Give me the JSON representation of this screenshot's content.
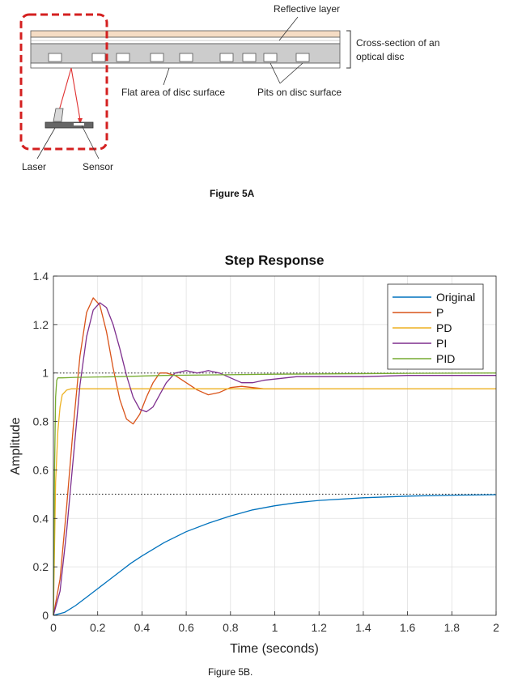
{
  "figure_5a": {
    "labels": {
      "reflective_layer": "Reflective layer",
      "cross_section_line1": "Cross-section of an",
      "cross_section_line2": "optical disc",
      "flat_area": "Flat area of disc surface",
      "pits": "Pits on disc surface",
      "laser": "Laser",
      "sensor": "Sensor"
    },
    "caption": "Figure 5A",
    "colors": {
      "highlight_box": "#d42020",
      "beam": "#e03030",
      "top_layer": "#f5dcc4",
      "mid_layer": "#cccccc"
    }
  },
  "figure_5b": {
    "caption": "Figure 5B."
  },
  "chart_data": {
    "type": "line",
    "title": "Step Response",
    "xlabel": "Time (seconds)",
    "ylabel": "Amplitude",
    "xlim": [
      0,
      2
    ],
    "ylim": [
      0,
      1.4
    ],
    "xticks": [
      "0",
      "0.2",
      "0.4",
      "0.6",
      "0.8",
      "1",
      "1.2",
      "1.4",
      "1.6",
      "1.8",
      "2"
    ],
    "yticks": [
      "0",
      "0.2",
      "0.4",
      "0.6",
      "0.8",
      "1",
      "1.2",
      "1.4"
    ],
    "grid": true,
    "legend_position": "top-right",
    "reference_lines": [
      1.0,
      0.5
    ],
    "series": [
      {
        "name": "Original",
        "color": "#0072BD",
        "x": [
          0,
          0.05,
          0.1,
          0.15,
          0.2,
          0.25,
          0.3,
          0.35,
          0.4,
          0.5,
          0.6,
          0.7,
          0.8,
          0.9,
          1.0,
          1.1,
          1.2,
          1.4,
          1.6,
          1.8,
          2.0
        ],
        "y": [
          0,
          0.012,
          0.04,
          0.075,
          0.11,
          0.145,
          0.18,
          0.215,
          0.245,
          0.3,
          0.345,
          0.38,
          0.41,
          0.435,
          0.452,
          0.465,
          0.474,
          0.485,
          0.492,
          0.496,
          0.498
        ]
      },
      {
        "name": "P",
        "color": "#D95319",
        "x": [
          0,
          0.03,
          0.06,
          0.09,
          0.12,
          0.15,
          0.18,
          0.21,
          0.24,
          0.27,
          0.3,
          0.33,
          0.36,
          0.39,
          0.42,
          0.45,
          0.48,
          0.51,
          0.55,
          0.6,
          0.65,
          0.7,
          0.75,
          0.8,
          0.85,
          0.9,
          0.95,
          1.0,
          1.05,
          1.1,
          1.15,
          1.2
        ],
        "y": [
          0,
          0.15,
          0.45,
          0.78,
          1.07,
          1.25,
          1.31,
          1.28,
          1.17,
          1.02,
          0.89,
          0.81,
          0.79,
          0.83,
          0.9,
          0.96,
          1.0,
          1.0,
          0.99,
          0.96,
          0.93,
          0.91,
          0.92,
          0.94,
          0.945,
          0.94,
          0.935,
          0.935,
          0.935,
          0.935,
          0.935,
          0.935
        ]
      },
      {
        "name": "PD",
        "color": "#EDB120",
        "x": [
          0,
          0.01,
          0.02,
          0.03,
          0.04,
          0.06,
          0.08,
          0.1,
          0.2,
          0.5,
          1.0,
          1.5,
          2.0
        ],
        "y": [
          0,
          0.55,
          0.76,
          0.86,
          0.91,
          0.93,
          0.935,
          0.935,
          0.935,
          0.935,
          0.935,
          0.935,
          0.935
        ]
      },
      {
        "name": "PI",
        "color": "#7E2F8E",
        "x": [
          0,
          0.03,
          0.06,
          0.09,
          0.12,
          0.15,
          0.18,
          0.21,
          0.24,
          0.27,
          0.3,
          0.33,
          0.36,
          0.39,
          0.42,
          0.45,
          0.48,
          0.51,
          0.55,
          0.6,
          0.65,
          0.7,
          0.75,
          0.8,
          0.85,
          0.9,
          0.95,
          1.0,
          1.1,
          1.2,
          1.4,
          1.6,
          1.8,
          2.0
        ],
        "y": [
          0,
          0.1,
          0.35,
          0.65,
          0.95,
          1.15,
          1.26,
          1.29,
          1.27,
          1.2,
          1.1,
          0.99,
          0.9,
          0.85,
          0.84,
          0.86,
          0.91,
          0.96,
          1.0,
          1.01,
          1.0,
          1.01,
          1.0,
          0.98,
          0.96,
          0.96,
          0.97,
          0.975,
          0.985,
          0.985,
          0.985,
          0.99,
          0.99,
          0.99
        ]
      },
      {
        "name": "PID",
        "color": "#77AC30",
        "x": [
          0,
          0.005,
          0.01,
          0.015,
          0.02,
          0.04,
          0.1,
          0.3,
          0.5,
          1.0,
          1.5,
          2.0
        ],
        "y": [
          0,
          0.6,
          0.9,
          0.97,
          0.98,
          0.98,
          0.982,
          0.985,
          0.99,
          0.995,
          0.998,
          1.0
        ]
      }
    ]
  }
}
